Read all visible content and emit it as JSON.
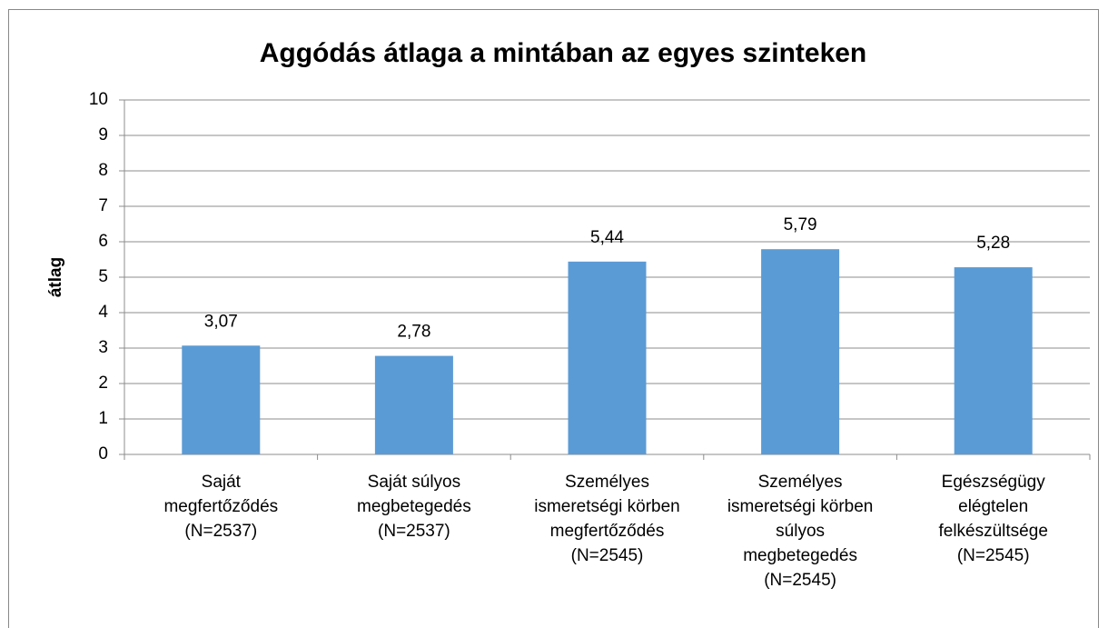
{
  "chart_data": {
    "type": "bar",
    "title": "Aggódás átlaga a mintában az egyes szinteken",
    "y_label": "átlag",
    "categories": [
      "Saját\nmegfertőződés\n(N=2537)",
      "Saját súlyos\nmegbetegedés\n(N=2537)",
      "Személyes\nismeretségi körben\nmegfertőződés\n(N=2545)",
      "Személyes\nismeretségi körben\nsúlyos\nmegbetegedés\n(N=2545)",
      "Egészségügy\nelégtelen\nfelkészültsége\n(N=2545)"
    ],
    "values": [
      3.07,
      2.78,
      5.44,
      5.79,
      5.28
    ],
    "value_labels": [
      "3,07",
      "2,78",
      "5,44",
      "5,79",
      "5,28"
    ],
    "color": "#5b9bd5",
    "ylim": [
      0,
      10
    ],
    "yticks": [
      0,
      1,
      2,
      3,
      4,
      5,
      6,
      7,
      8,
      9,
      10
    ],
    "grid": true
  }
}
